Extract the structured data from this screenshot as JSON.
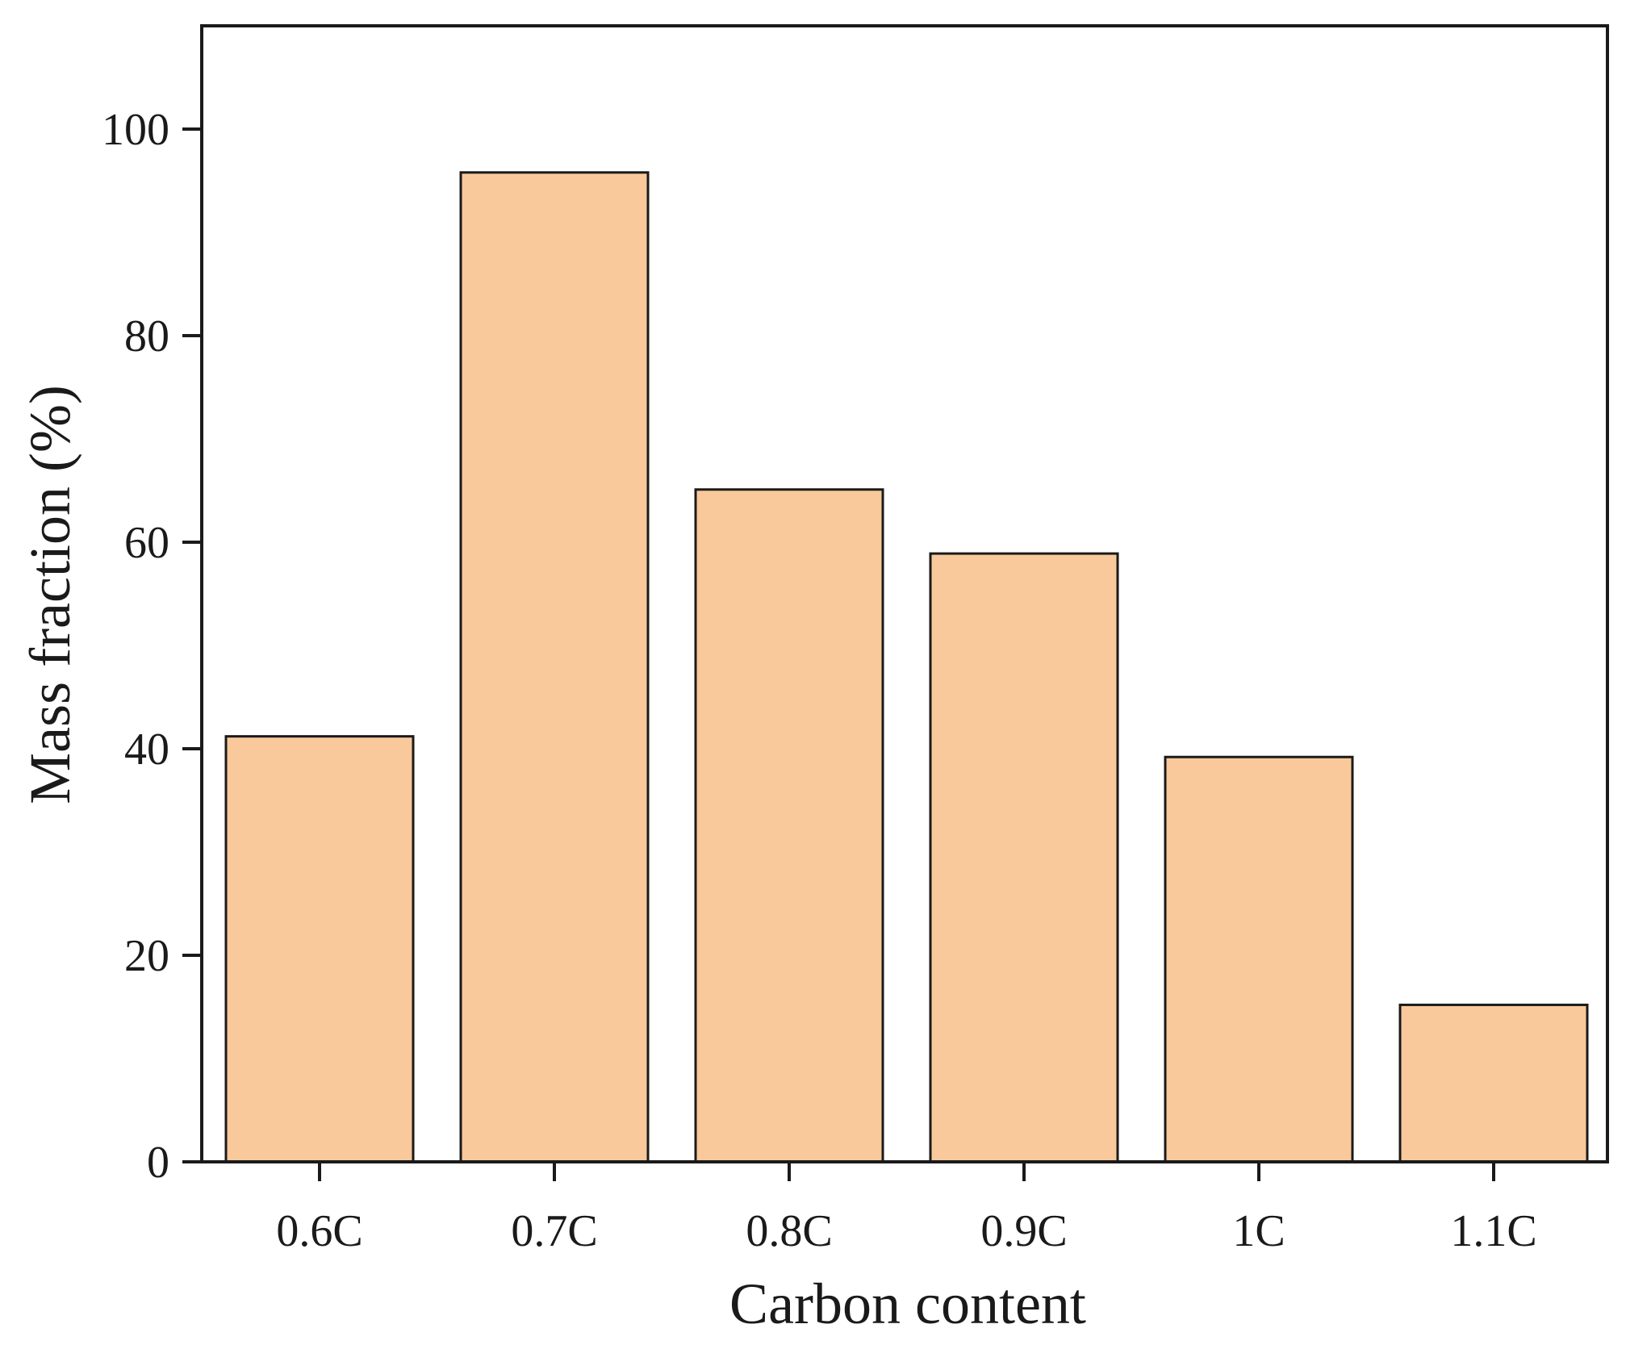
{
  "chart_data": {
    "type": "bar",
    "categories": [
      "0.6C",
      "0.7C",
      "0.8C",
      "0.9C",
      "1C",
      "1.1C"
    ],
    "values": [
      41.2,
      95.8,
      65.1,
      58.9,
      39.2,
      15.2
    ],
    "title": "",
    "xlabel": "Carbon content",
    "ylabel": "Mass fraction (%)",
    "ylim": [
      0,
      110
    ],
    "yticks": [
      0,
      20,
      40,
      60,
      80,
      100
    ],
    "ytick_labels": [
      "0",
      "20",
      "40",
      "60",
      "80",
      "100"
    ],
    "grid": false,
    "legend": "none",
    "bar_color": "#f9c99b",
    "bar_edge_color": "#1a1a1a"
  }
}
